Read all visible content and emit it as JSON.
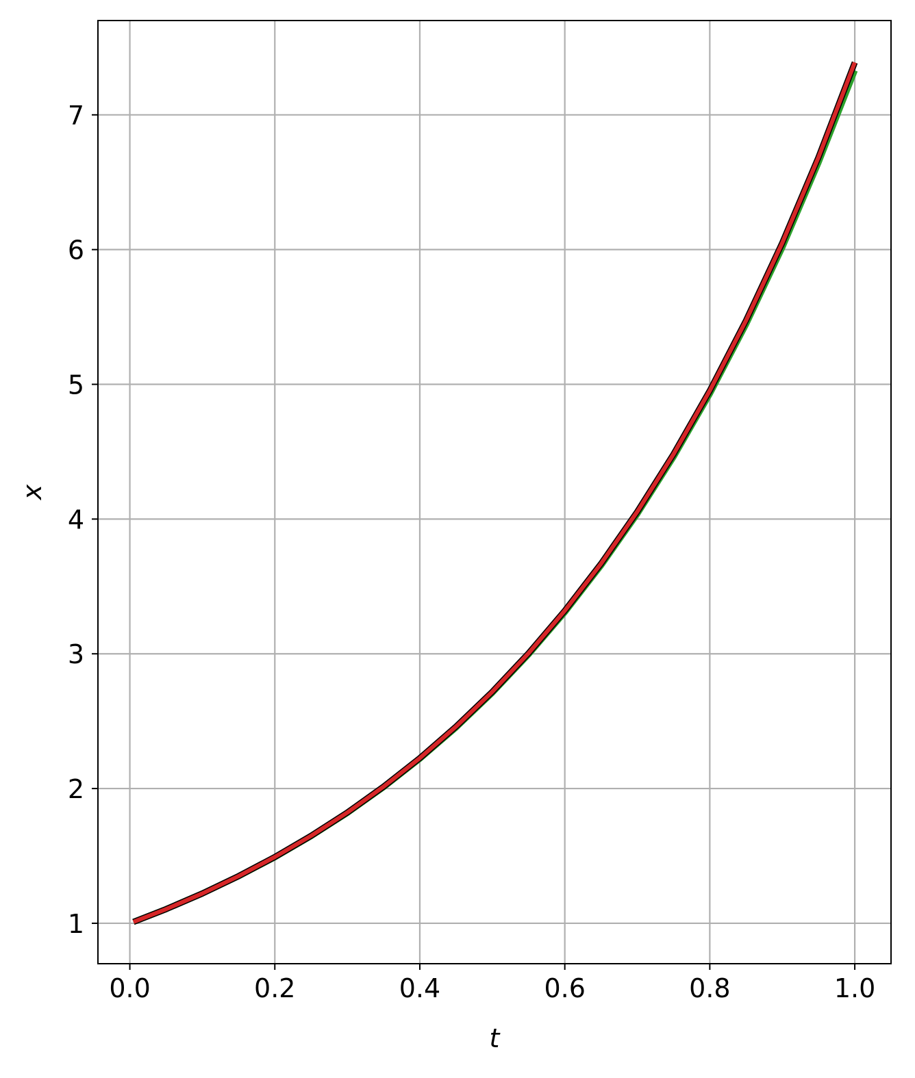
{
  "chart_data": {
    "type": "line",
    "title": "",
    "xlabel": "t",
    "ylabel": "x",
    "xlim": [
      -0.044,
      1.05
    ],
    "ylim": [
      0.7,
      7.7
    ],
    "xticks": [
      0.0,
      0.2,
      0.4,
      0.6,
      0.8,
      1.0
    ],
    "xtick_labels": [
      "0.0",
      "0.2",
      "0.4",
      "0.6",
      "0.8",
      "1.0"
    ],
    "yticks": [
      1,
      2,
      3,
      4,
      5,
      6,
      7
    ],
    "ytick_labels": [
      "1",
      "2",
      "3",
      "4",
      "5",
      "6",
      "7"
    ],
    "grid": true,
    "legend": "none",
    "colors": {
      "grid": "#b0b0b0",
      "green_series": "#2ca02c",
      "red_series": "#d62728",
      "outline": "#000000"
    },
    "series": [
      {
        "color": "#2ca02c",
        "x": [
          0.005,
          0.05,
          0.1,
          0.15,
          0.2,
          0.25,
          0.3,
          0.35,
          0.4,
          0.45,
          0.5,
          0.55,
          0.6,
          0.65,
          0.7,
          0.75,
          0.8,
          0.85,
          0.9,
          0.95,
          1.0
        ],
        "y": [
          1.01,
          1.105,
          1.221,
          1.349,
          1.49,
          1.647,
          1.819,
          2.01,
          2.221,
          2.453,
          2.71,
          2.995,
          3.308,
          3.655,
          4.038,
          4.461,
          4.929,
          5.445,
          6.015,
          6.646,
          7.33
        ]
      },
      {
        "color": "#d62728",
        "x": [
          0.005,
          0.05,
          0.1,
          0.15,
          0.2,
          0.25,
          0.3,
          0.35,
          0.4,
          0.45,
          0.5,
          0.55,
          0.6,
          0.65,
          0.7,
          0.75,
          0.8,
          0.85,
          0.9,
          0.95,
          1.0
        ],
        "y": [
          1.01,
          1.105,
          1.221,
          1.35,
          1.492,
          1.649,
          1.822,
          2.014,
          2.226,
          2.46,
          2.718,
          3.004,
          3.32,
          3.669,
          4.055,
          4.482,
          4.953,
          5.474,
          6.05,
          6.686,
          7.389
        ]
      }
    ]
  }
}
